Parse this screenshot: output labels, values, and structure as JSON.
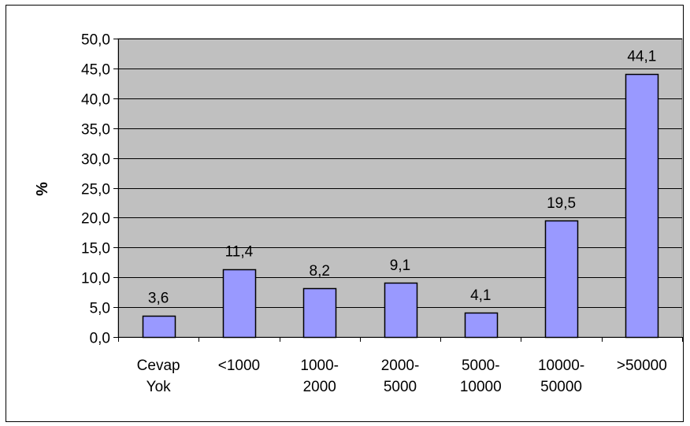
{
  "chart_data": {
    "type": "bar",
    "title": "",
    "xlabel": "",
    "ylabel": "%",
    "ylim": [
      0,
      50
    ],
    "y_tick_step": 5,
    "y_tick_labels": [
      "0,0",
      "5,0",
      "10,0",
      "15,0",
      "20,0",
      "25,0",
      "30,0",
      "35,0",
      "40,0",
      "45,0",
      "50,0"
    ],
    "categories": [
      "Cevap Yok",
      "<1000",
      "1000-2000",
      "2000-5000",
      "5000-10000",
      "10000-50000",
      ">50000"
    ],
    "category_label_lines": [
      [
        "Cevap",
        "Yok"
      ],
      [
        "<1000"
      ],
      [
        "1000-",
        "2000"
      ],
      [
        "2000-",
        "5000"
      ],
      [
        "5000-",
        "10000"
      ],
      [
        "10000-",
        "50000"
      ],
      [
        ">50000"
      ]
    ],
    "values": [
      3.6,
      11.4,
      8.2,
      9.1,
      4.1,
      19.5,
      44.1
    ],
    "value_labels": [
      "3,6",
      "11,4",
      "8,2",
      "9,1",
      "4,1",
      "19,5",
      "44,1"
    ],
    "grid": true,
    "legend": "none",
    "colors": {
      "bar_fill": "#9999ff",
      "bar_stroke": "#000000",
      "plot_background": "#c0c0c0",
      "gridline": "#000000",
      "page_background": "#ffffff",
      "frame": "#000000"
    }
  }
}
